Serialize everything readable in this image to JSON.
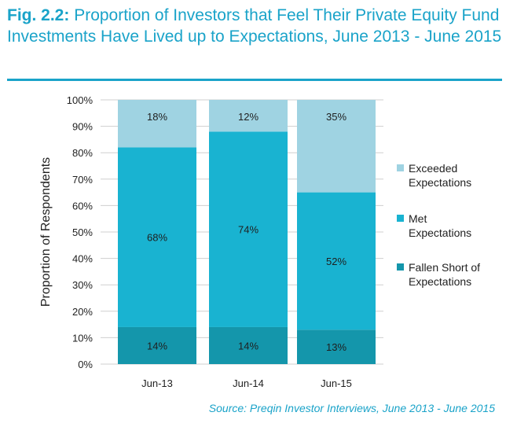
{
  "header": {
    "fig_label": "Fig. 2.2:",
    "title_text": " Proportion of Investors that Feel Their Private Equity Fund Investments Have Lived up to Expectations, June 2013 - June 2015"
  },
  "source": "Source: Preqin Investor Interviews, June 2013 - June 2015",
  "colors": {
    "title_accent": "#1aa3c9",
    "exceeded": "#9fd3e2",
    "met": "#19b3d1",
    "fallen_short": "#1496ab"
  },
  "chart_data": {
    "type": "bar",
    "stacked": true,
    "categories": [
      "Jun-13",
      "Jun-14",
      "Jun-15"
    ],
    "series": [
      {
        "name": "Fallen Short of Expectations",
        "values": [
          14,
          14,
          13
        ],
        "labels": [
          "14%",
          "14%",
          "13%"
        ],
        "color": "#1496ab"
      },
      {
        "name": "Met Expectations",
        "values": [
          68,
          74,
          52
        ],
        "labels": [
          "68%",
          "74%",
          "52%"
        ],
        "color": "#19b3d1"
      },
      {
        "name": "Exceeded Expectations",
        "values": [
          18,
          12,
          35
        ],
        "labels": [
          "18%",
          "12%",
          "35%"
        ],
        "color": "#9fd3e2"
      }
    ],
    "legend": [
      {
        "lines": [
          "Exceeded",
          "Expectations"
        ],
        "color": "#9fd3e2"
      },
      {
        "lines": [
          "Met",
          "Expectations"
        ],
        "color": "#19b3d1"
      },
      {
        "lines": [
          "Fallen Short of",
          "Expectations"
        ],
        "color": "#1496ab"
      }
    ],
    "legend_position": "right",
    "ylabel": "Proportion of Respondents",
    "yticks": [
      "0%",
      "10%",
      "20%",
      "30%",
      "40%",
      "50%",
      "60%",
      "70%",
      "80%",
      "90%",
      "100%"
    ],
    "ylim": [
      0,
      100
    ],
    "grid": true
  }
}
